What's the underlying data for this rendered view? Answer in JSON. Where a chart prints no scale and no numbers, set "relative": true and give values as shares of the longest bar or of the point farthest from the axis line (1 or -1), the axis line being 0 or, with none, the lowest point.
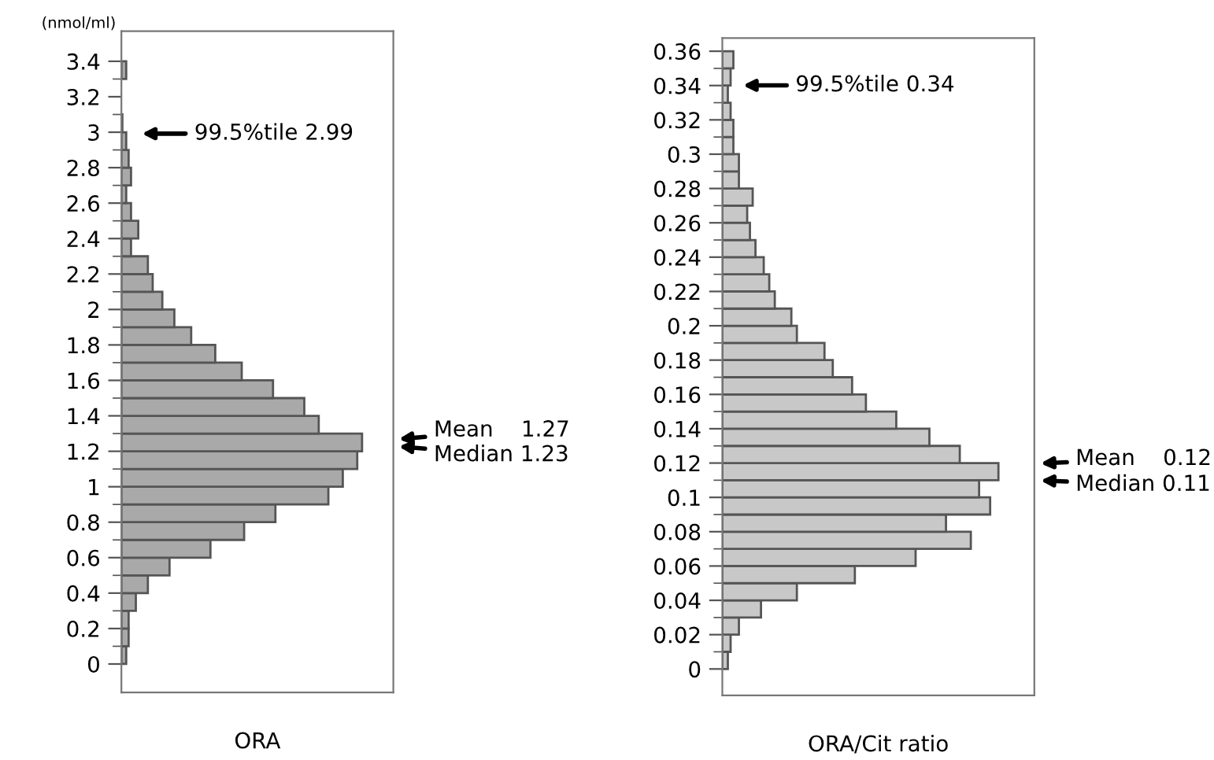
{
  "chart_data": [
    {
      "type": "bar",
      "orientation": "horizontal",
      "relative": true,
      "color": "#a9a9a9",
      "ylabel": "(nmol/ml)",
      "xlabel": "ORA",
      "x": [
        0.05,
        0.15,
        0.25,
        0.35,
        0.45,
        0.55,
        0.65,
        0.75,
        0.85,
        0.95,
        1.05,
        1.15,
        1.25,
        1.35,
        1.45,
        1.55,
        1.65,
        1.75,
        1.85,
        1.95,
        2.05,
        2.15,
        2.25,
        2.35,
        2.45,
        2.55,
        2.65,
        2.75,
        2.85,
        2.95,
        3.05,
        3.15,
        3.25,
        3.35
      ],
      "values": [
        0.02,
        0.03,
        0.03,
        0.06,
        0.11,
        0.2,
        0.37,
        0.51,
        0.64,
        0.86,
        0.92,
        0.98,
        1,
        0.82,
        0.76,
        0.63,
        0.5,
        0.39,
        0.29,
        0.22,
        0.17,
        0.13,
        0.11,
        0.04,
        0.07,
        0.04,
        0.02,
        0.04,
        0.03,
        0.02,
        0.004,
        null,
        null,
        0.02
      ],
      "ylim": [
        -0.16,
        3.57
      ],
      "yticks": [
        0,
        0.2,
        0.4,
        0.6,
        0.8,
        1,
        1.2,
        1.4,
        1.6,
        1.8,
        2,
        2.2,
        2.4,
        2.6,
        2.8,
        3,
        3.2,
        3.4
      ],
      "annotations": [
        "99.5%tile 2.99",
        "Mean    1.27",
        "Median 1.23"
      ]
    },
    {
      "type": "bar",
      "orientation": "horizontal",
      "relative": true,
      "color": "#c8c8c8",
      "xlabel": "ORA/Cit ratio",
      "x": [
        0.005,
        0.015,
        0.025,
        0.035,
        0.045,
        0.055,
        0.065,
        0.075,
        0.085,
        0.095,
        0.105,
        0.115,
        0.125,
        0.135,
        0.145,
        0.155,
        0.165,
        0.175,
        0.185,
        0.195,
        0.205,
        0.215,
        0.225,
        0.235,
        0.245,
        0.255,
        0.265,
        0.275,
        0.285,
        0.295,
        0.305,
        0.315,
        0.325,
        0.335,
        0.345,
        0.355
      ],
      "values": [
        0.02,
        0.03,
        0.06,
        0.14,
        0.27,
        0.48,
        0.7,
        0.9,
        0.81,
        0.97,
        0.93,
        1,
        0.86,
        0.75,
        0.63,
        0.52,
        0.47,
        0.4,
        0.37,
        0.27,
        0.25,
        0.19,
        0.17,
        0.15,
        0.12,
        0.1,
        0.09,
        0.11,
        0.06,
        0.06,
        0.04,
        0.04,
        0.03,
        0.02,
        0.03,
        0.04
      ],
      "ylim": [
        -0.0154,
        0.3677
      ],
      "yticks": [
        0,
        0.02,
        0.04,
        0.06,
        0.08,
        0.1,
        0.12,
        0.14,
        0.16,
        0.18,
        0.2,
        0.22,
        0.24,
        0.26,
        0.28,
        0.3,
        0.32,
        0.34,
        0.36
      ],
      "annotations": [
        "99.5%tile 0.34",
        "Mean    0.12",
        "Median 0.11"
      ]
    }
  ]
}
